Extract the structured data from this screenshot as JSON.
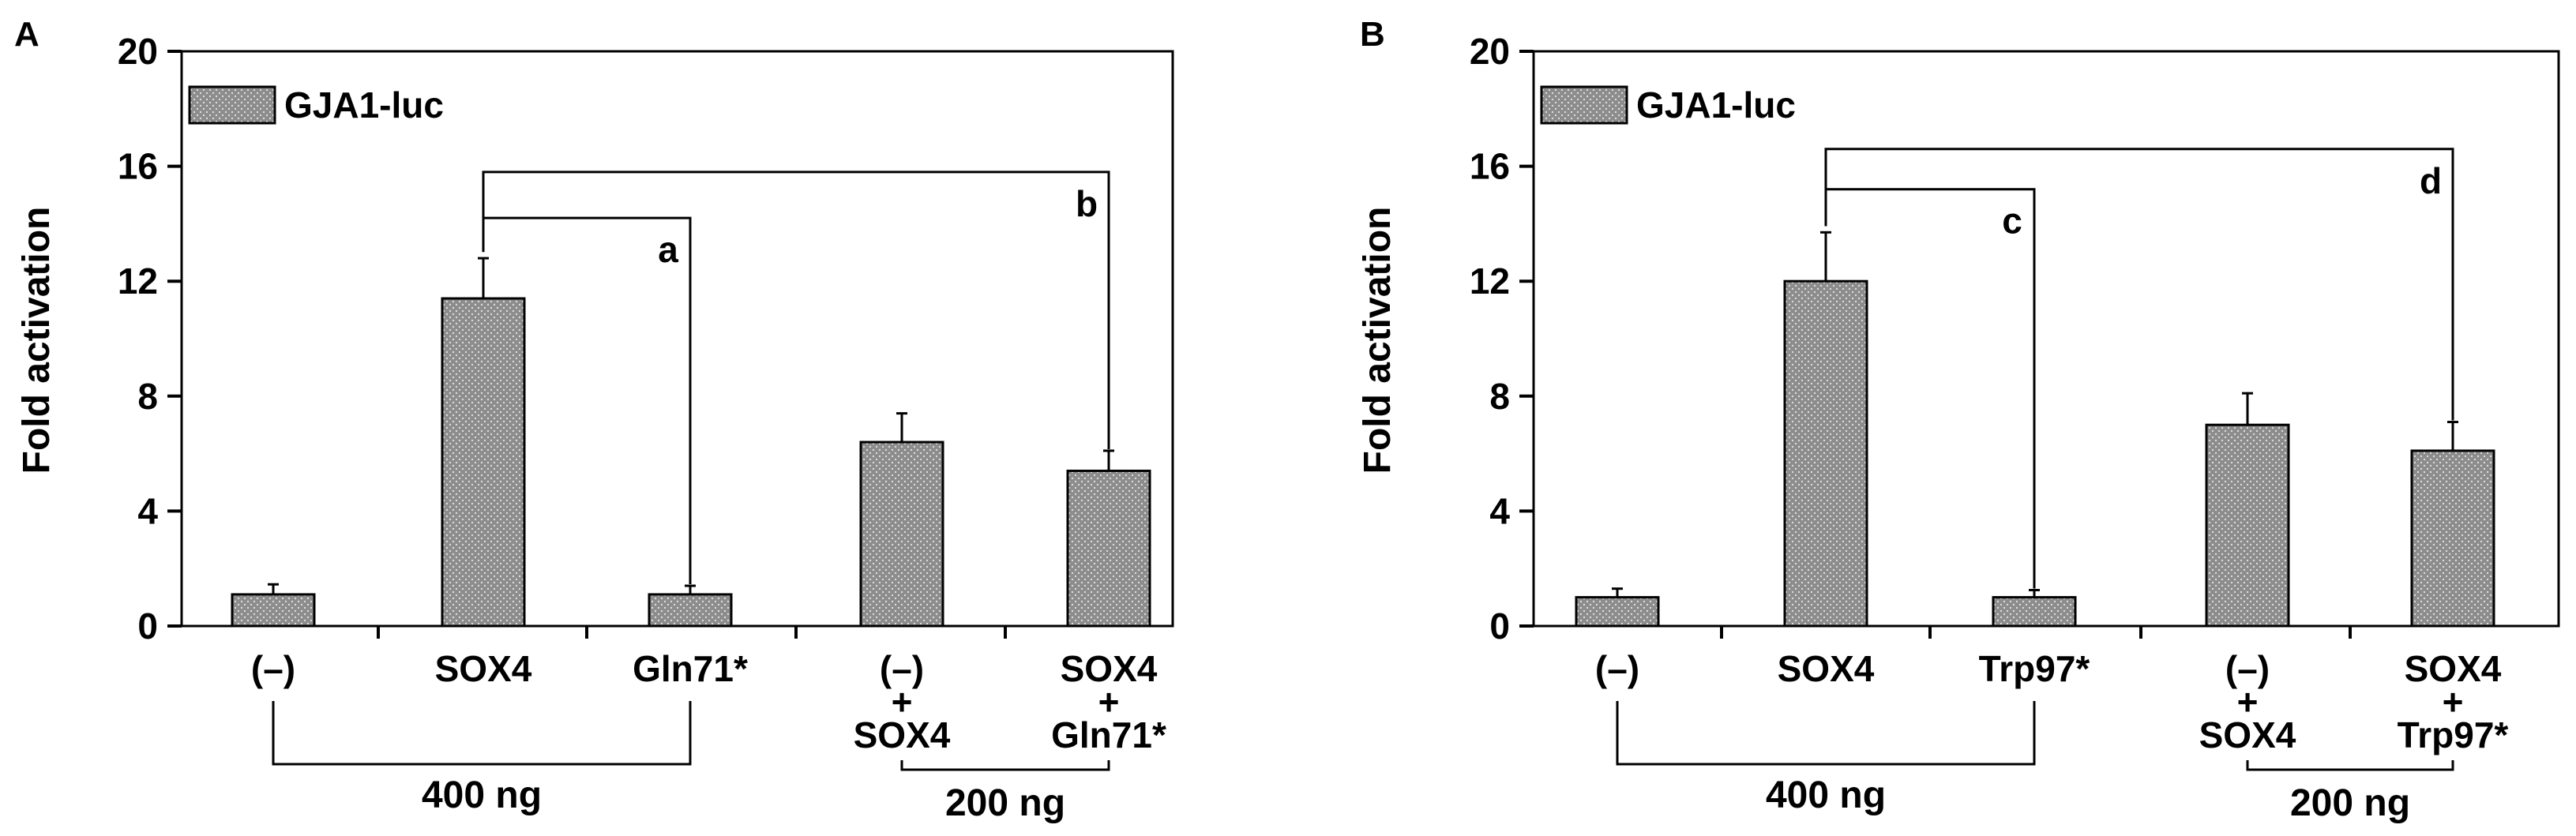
{
  "chart_data": [
    {
      "type": "bar",
      "panel_label": "A",
      "ylabel": "Fold activation",
      "ylim": [
        0,
        20
      ],
      "yticks": [
        0,
        4,
        8,
        12,
        16,
        20
      ],
      "legend": "GJA1-luc",
      "legend_position": "top-left",
      "bar_color": "#8c8c8c",
      "categories": [
        [
          "(–)"
        ],
        [
          "SOX4"
        ],
        [
          "Gln71*"
        ],
        [
          "(–)",
          "+",
          "SOX4"
        ],
        [
          "SOX4",
          "+",
          "Gln71*"
        ]
      ],
      "values": [
        1.1,
        11.4,
        1.1,
        6.4,
        5.4
      ],
      "errors": [
        0.35,
        1.4,
        0.3,
        1.0,
        0.7
      ],
      "group_brackets": [
        {
          "label": "400 ng",
          "from": 0,
          "to": 2
        },
        {
          "label": "200 ng",
          "from": 3,
          "to": 4
        }
      ],
      "comparisons": [
        {
          "label": "a",
          "from": 1,
          "to": 2,
          "level": 14.2
        },
        {
          "label": "b",
          "from": 1,
          "to": 4,
          "level": 15.8
        }
      ]
    },
    {
      "type": "bar",
      "panel_label": "B",
      "ylabel": "Fold activation",
      "ylim": [
        0,
        20
      ],
      "yticks": [
        0,
        4,
        8,
        12,
        16,
        20
      ],
      "legend": "GJA1-luc",
      "legend_position": "top-left",
      "bar_color": "#8c8c8c",
      "categories": [
        [
          "(–)"
        ],
        [
          "SOX4"
        ],
        [
          "Trp97*"
        ],
        [
          "(–)",
          "+",
          "SOX4"
        ],
        [
          "SOX4",
          "+",
          "Trp97*"
        ]
      ],
      "values": [
        1.0,
        12.0,
        1.0,
        7.0,
        6.1
      ],
      "errors": [
        0.3,
        1.7,
        0.25,
        1.1,
        1.0
      ],
      "group_brackets": [
        {
          "label": "400 ng",
          "from": 0,
          "to": 2
        },
        {
          "label": "200 ng",
          "from": 3,
          "to": 4
        }
      ],
      "comparisons": [
        {
          "label": "c",
          "from": 1,
          "to": 2,
          "level": 15.2
        },
        {
          "label": "d",
          "from": 1,
          "to": 4,
          "level": 16.6
        }
      ]
    }
  ]
}
